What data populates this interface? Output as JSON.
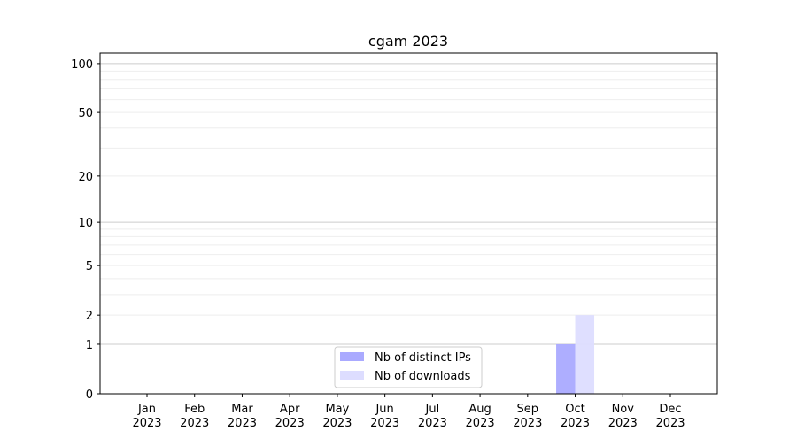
{
  "chart_data": {
    "type": "bar",
    "title": "cgam 2023",
    "xlabel": "",
    "ylabel": "",
    "y_scale": "log(1+y)",
    "ylim": [
      0,
      116
    ],
    "y_ticks": [
      0,
      1,
      2,
      5,
      10,
      20,
      50,
      100
    ],
    "y_minor_gridlines": [
      3,
      4,
      6,
      7,
      8,
      9,
      30,
      40,
      60,
      70,
      80,
      90
    ],
    "grid": true,
    "categories": [
      "Jan\n2023",
      "Feb\n2023",
      "Mar\n2023",
      "Apr\n2023",
      "May\n2023",
      "Jun\n2023",
      "Jul\n2023",
      "Aug\n2023",
      "Sep\n2023",
      "Oct\n2023",
      "Nov\n2023",
      "Dec\n2023"
    ],
    "series": [
      {
        "name": "Nb of distinct IPs",
        "color": "#aaaaff",
        "values": [
          0,
          0,
          0,
          0,
          0,
          0,
          0,
          0,
          0,
          1,
          0,
          0
        ]
      },
      {
        "name": "Nb of downloads",
        "color": "#ddddff",
        "values": [
          0,
          0,
          0,
          0,
          0,
          0,
          0,
          0,
          0,
          2,
          0,
          0
        ]
      }
    ],
    "legend_position": "lower-center"
  }
}
